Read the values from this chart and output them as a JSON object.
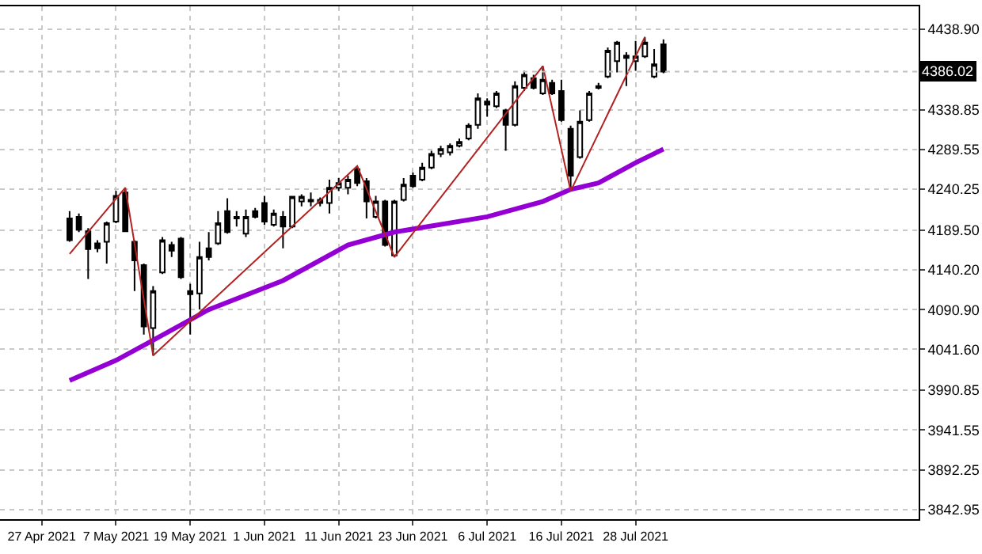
{
  "chart_data": {
    "type": "candlestick",
    "categories": [
      "27 Apr 2021",
      null,
      null,
      null,
      null,
      null,
      null,
      null,
      "7 May 2021",
      null,
      null,
      null,
      null,
      null,
      null,
      null,
      "19 May 2021",
      null,
      null,
      null,
      null,
      null,
      null,
      null,
      "1 Jun 2021",
      null,
      null,
      null,
      null,
      null,
      null,
      null,
      "11 Jun 2021",
      null,
      null,
      null,
      null,
      null,
      null,
      null,
      "23 Jun 2021",
      null,
      null,
      null,
      null,
      null,
      null,
      null,
      "6 Jul 2021",
      null,
      null,
      null,
      null,
      null,
      null,
      null,
      "16 Jul 2021",
      null,
      null,
      null,
      null,
      null,
      null,
      null,
      "28 Jul 2021",
      null,
      null,
      null,
      null,
      null,
      null,
      null,
      null,
      null,
      null,
      null,
      null,
      null,
      null,
      null,
      null,
      null,
      null,
      null,
      null,
      null,
      null,
      null,
      null,
      null,
      null,
      null,
      null,
      null,
      null
    ],
    "series": [
      {
        "color": "#000000",
        "ohlc": [
          null,
          null,
          null,
          [
            4204,
            4213,
            4175,
            4177
          ],
          [
            4206,
            4210,
            4187,
            4190
          ],
          [
            4188,
            4192,
            4129,
            4166
          ],
          [
            4173,
            4177,
            4162,
            4167
          ],
          [
            4175,
            4200,
            4148,
            4198
          ],
          [
            4200,
            4238,
            4198,
            4232
          ],
          [
            4236,
            4242,
            4187,
            4188
          ],
          [
            4175,
            4177,
            4114,
            4152
          ],
          [
            4146,
            4148,
            4060,
            4070
          ],
          [
            4068,
            4120,
            4034,
            4114
          ],
          [
            4137,
            4181,
            4135,
            4177
          ],
          [
            4171,
            4175,
            4156,
            4164
          ],
          [
            4179,
            4181,
            4129,
            4131
          ],
          [
            4114,
            4123,
            4060,
            4110
          ],
          [
            4111,
            4175,
            4091,
            4156
          ],
          [
            4167,
            4187,
            4152,
            4156
          ],
          [
            4173,
            4213,
            4171,
            4198
          ],
          [
            4213,
            4229,
            4185,
            4187
          ],
          [
            4206,
            4213,
            4194,
            4204
          ],
          [
            4185,
            4215,
            4181,
            4206
          ],
          [
            4213,
            4217,
            4204,
            4206
          ],
          [
            4223,
            4232,
            4196,
            4200
          ],
          [
            4196,
            4215,
            4194,
            4210
          ],
          [
            4206,
            4213,
            4167,
            4194
          ],
          [
            4194,
            4232,
            4192,
            4231
          ],
          [
            4225,
            4234,
            4219,
            4231
          ],
          [
            4227,
            4236,
            4219,
            4225
          ],
          [
            4227,
            4230,
            4219,
            4223
          ],
          [
            4223,
            4252,
            4210,
            4242
          ],
          [
            4242,
            4254,
            4238,
            4248
          ],
          [
            4242,
            4257,
            4234,
            4252
          ],
          [
            4265,
            4269,
            4244,
            4248
          ],
          [
            4250,
            4254,
            4204,
            4225
          ],
          [
            4206,
            4232,
            4204,
            4225
          ],
          [
            4225,
            4227,
            4169,
            4171
          ],
          [
            4158,
            4227,
            4156,
            4225
          ],
          [
            4227,
            4254,
            4225,
            4246
          ],
          [
            4257,
            4261,
            4242,
            4244
          ],
          [
            4252,
            4273,
            4250,
            4267
          ],
          [
            4267,
            4288,
            4265,
            4284
          ],
          [
            4284,
            4294,
            4280,
            4290
          ],
          [
            4286,
            4297,
            4282,
            4294
          ],
          [
            4294,
            4303,
            4292,
            4299
          ],
          [
            4303,
            4322,
            4301,
            4319
          ],
          [
            4320,
            4359,
            4315,
            4353
          ],
          [
            4349,
            4353,
            4330,
            4345
          ],
          [
            4343,
            4362,
            4341,
            4359
          ],
          [
            4338,
            4340,
            4288,
            4320
          ],
          [
            4320,
            4374,
            4318,
            4368
          ],
          [
            4366,
            4387,
            4362,
            4382
          ],
          [
            4378,
            4382,
            4364,
            4366
          ],
          [
            4359,
            4393,
            4357,
            4376
          ],
          [
            4372,
            4376,
            4357,
            4359
          ],
          [
            4362,
            4376,
            4324,
            4326
          ],
          [
            4315,
            4319,
            4238,
            4257
          ],
          [
            4280,
            4338,
            4278,
            4324
          ],
          [
            4326,
            4362,
            4324,
            4359
          ],
          [
            4368,
            4372,
            4364,
            4366
          ],
          [
            4380,
            4416,
            4378,
            4412
          ],
          [
            4399,
            4424,
            4385,
            4422
          ],
          [
            4406,
            4410,
            4368,
            4403
          ],
          [
            4399,
            4424,
            4387,
            4405
          ],
          [
            4405,
            4429,
            4403,
            4422
          ],
          [
            4380,
            4414,
            4378,
            4395
          ],
          [
            4420,
            4426,
            4384,
            4386
          ],
          null,
          null,
          null,
          null,
          null,
          null,
          null,
          null,
          null,
          null,
          null,
          null,
          null,
          null,
          null,
          null,
          null,
          null,
          null,
          null,
          null,
          null,
          null,
          null,
          null,
          null,
          null
        ]
      },
      {
        "type": "line",
        "color": "#9400d3",
        "values": [
          null,
          null,
          null,
          4003,
          null,
          null,
          null,
          null,
          4028,
          null,
          null,
          null,
          4053,
          null,
          null,
          null,
          null,
          null,
          4091,
          null,
          null,
          null,
          null,
          null,
          null,
          null,
          4127,
          null,
          null,
          null,
          null,
          null,
          null,
          4171,
          null,
          null,
          null,
          null,
          4187,
          null,
          null,
          null,
          null,
          null,
          null,
          null,
          null,
          null,
          4206,
          null,
          null,
          null,
          null,
          null,
          4225,
          null,
          null,
          4240,
          null,
          null,
          4248,
          null,
          null,
          null,
          4273,
          null,
          null,
          4290,
          null,
          null,
          null,
          null,
          null,
          null,
          null,
          null,
          null,
          null,
          null,
          null,
          null,
          null,
          null,
          null,
          null,
          null,
          null,
          null,
          null,
          null,
          null,
          null,
          null,
          null,
          null
        ]
      },
      {
        "type": "line",
        "color": "#b22222",
        "values": [
          null,
          null,
          null,
          4160,
          null,
          null,
          null,
          null,
          null,
          4242,
          null,
          null,
          4034,
          null,
          null,
          null,
          null,
          null,
          null,
          null,
          null,
          null,
          null,
          null,
          null,
          null,
          null,
          null,
          null,
          null,
          null,
          null,
          null,
          null,
          4269,
          null,
          null,
          null,
          4156,
          null,
          null,
          null,
          null,
          null,
          null,
          null,
          null,
          null,
          null,
          null,
          null,
          null,
          null,
          null,
          4393,
          null,
          null,
          4238,
          null,
          null,
          null,
          null,
          null,
          null,
          null,
          4429,
          null,
          null,
          null,
          null,
          null,
          null,
          null,
          null,
          null,
          null,
          null,
          null,
          null,
          null,
          null,
          null,
          null,
          null,
          null,
          null,
          null,
          null,
          null,
          null,
          null,
          null,
          null,
          null,
          null
        ]
      }
    ],
    "ylim": [
      3831,
      4467
    ],
    "yticks": [
      {
        "value": 4438.9,
        "label": "4438.90"
      },
      4338.85,
      4289.55,
      4240.25,
      {
        "value": 4189.5,
        "label": "4189.50"
      },
      {
        "value": 4140.2,
        "label": "4140.20"
      },
      {
        "value": 4090.9,
        "label": "4090.90"
      },
      {
        "value": 4041.6,
        "label": "4041.60"
      },
      3990.85,
      3941.55,
      3892.25,
      3842.95
    ],
    "ref_lines": [
      {
        "axis": "y",
        "value": 4386.02,
        "label": "4386.02",
        "color": "#c0c0c0",
        "line_style": "dotted"
      }
    ],
    "grid": true
  }
}
